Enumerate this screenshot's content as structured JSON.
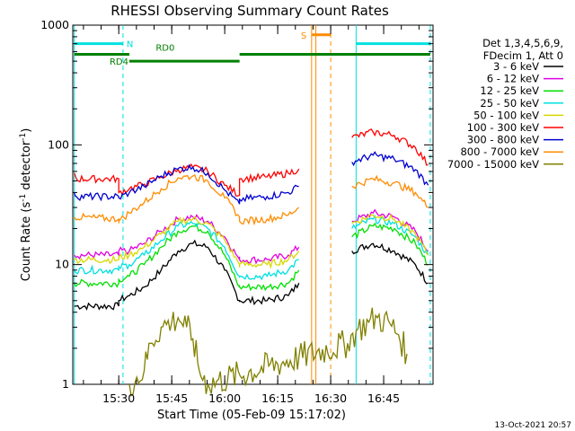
{
  "chart_data": {
    "type": "line",
    "title": "RHESSI Observing Summary Count Rates",
    "xlabel": "Start Time (05-Feb-09 15:17:02)",
    "ylabel_main": "Count Rate (s",
    "ylabel_sup1": "-1",
    "ylabel_mid": " detector",
    "ylabel_sup2": "-1",
    "ylabel_end": ")",
    "yscale": "log",
    "ylim": [
      1,
      1000
    ],
    "xlim_minutes": [
      15.283,
      16.983
    ],
    "y_ticks": [
      {
        "value": 1,
        "label": "1"
      },
      {
        "value": 10,
        "label": "10"
      },
      {
        "value": 100,
        "label": "100"
      },
      {
        "value": 1000,
        "label": "1000"
      }
    ],
    "x_ticks": [
      {
        "value": 15.5,
        "label": "15:30"
      },
      {
        "value": 15.75,
        "label": "15:45"
      },
      {
        "value": 16.0,
        "label": "16:00"
      },
      {
        "value": 16.25,
        "label": "16:15"
      },
      {
        "value": 16.5,
        "label": "16:30"
      },
      {
        "value": 16.75,
        "label": "16:45"
      }
    ],
    "legend_header": [
      "Det 1,3,4,5,6,9,",
      "FDecim 1, Att 0"
    ],
    "legend_position": "right",
    "footer_date": "13-Oct-2021 20:57",
    "series": [
      {
        "name": "3 - 6 keV",
        "color": "#000000",
        "x": [
          15.29,
          15.5,
          15.5,
          15.55,
          15.62,
          15.7,
          15.78,
          15.85,
          15.92,
          16.0,
          16.07,
          16.07,
          16.2,
          16.3,
          16.35,
          16.48,
          16.6,
          16.7,
          16.8,
          16.9,
          16.96
        ],
        "y": [
          4.5,
          4.5,
          5.0,
          5.5,
          6.5,
          9,
          13,
          15,
          14,
          9,
          5,
          5,
          5,
          5.5,
          7,
          null,
          13,
          15,
          13,
          10,
          7
        ]
      },
      {
        "name": "6 - 12 keV",
        "color": "#e000e0",
        "x": [
          15.29,
          15.5,
          15.5,
          15.55,
          15.62,
          15.7,
          15.78,
          15.85,
          15.92,
          16.0,
          16.07,
          16.07,
          16.2,
          16.3,
          16.35,
          16.48,
          16.6,
          16.7,
          16.8,
          16.9,
          16.96
        ],
        "y": [
          12,
          12,
          13,
          13,
          15,
          19,
          24,
          25,
          23,
          17,
          11,
          11,
          11,
          12,
          14,
          null,
          23,
          27,
          25,
          19,
          13
        ]
      },
      {
        "name": "12 - 25 keV",
        "color": "#00e000",
        "x": [
          15.29,
          15.5,
          15.5,
          15.55,
          15.62,
          15.7,
          15.78,
          15.85,
          15.92,
          16.0,
          16.07,
          16.07,
          16.2,
          16.3,
          16.35,
          16.48,
          16.6,
          16.7,
          16.8,
          16.9,
          16.96
        ],
        "y": [
          7,
          7,
          7.5,
          8,
          10,
          14,
          19,
          21,
          19,
          12,
          6.5,
          6.5,
          6.5,
          7,
          9,
          null,
          17,
          21,
          20,
          15,
          10
        ]
      },
      {
        "name": "25 - 50 keV",
        "color": "#00e0e0",
        "x": [
          15.29,
          15.5,
          15.5,
          15.55,
          15.62,
          15.7,
          15.78,
          15.85,
          15.92,
          16.0,
          16.07,
          16.07,
          16.2,
          16.3,
          16.35,
          16.48,
          16.6,
          16.7,
          16.8,
          16.9,
          16.96
        ],
        "y": [
          9,
          9,
          9.5,
          10,
          12,
          16,
          21,
          22,
          20,
          14,
          8,
          8,
          8,
          9,
          11,
          null,
          20,
          24,
          22,
          17,
          12
        ]
      },
      {
        "name": "50 - 100 keV",
        "color": "#d8d800",
        "x": [
          15.29,
          15.5,
          15.5,
          15.55,
          15.62,
          15.7,
          15.78,
          15.85,
          15.92,
          16.0,
          16.07,
          16.07,
          16.2,
          16.3,
          16.35,
          16.48,
          16.6,
          16.7,
          16.8,
          16.9,
          16.96
        ],
        "y": [
          11,
          11,
          11.5,
          12,
          14,
          18,
          23,
          24,
          22,
          16,
          10,
          10,
          10,
          11,
          13,
          null,
          22,
          26,
          24,
          18,
          12
        ]
      },
      {
        "name": "100 - 300 keV",
        "color": "#ff0000",
        "x": [
          15.29,
          15.3,
          15.5,
          15.5,
          15.55,
          15.62,
          15.7,
          15.78,
          15.85,
          15.92,
          16.0,
          16.07,
          16.07,
          16.2,
          16.3,
          16.35,
          16.48,
          16.6,
          16.7,
          16.8,
          16.9,
          16.96
        ],
        "y": [
          58,
          52,
          52,
          40,
          43,
          47,
          54,
          62,
          65,
          60,
          46,
          38,
          52,
          54,
          58,
          63,
          null,
          115,
          128,
          120,
          95,
          68
        ]
      },
      {
        "name": "300 - 800 keV",
        "color": "#0000d0",
        "x": [
          15.29,
          15.3,
          15.5,
          15.5,
          15.55,
          15.62,
          15.7,
          15.78,
          15.85,
          15.92,
          16.0,
          16.07,
          16.07,
          16.2,
          16.3,
          16.35,
          16.48,
          16.6,
          16.7,
          16.8,
          16.9,
          16.96
        ],
        "y": [
          40,
          37,
          37,
          36,
          40,
          45,
          55,
          63,
          65,
          58,
          42,
          32,
          35,
          37,
          40,
          45,
          null,
          72,
          82,
          76,
          62,
          46
        ]
      },
      {
        "name": "800 - 7000 keV",
        "color": "#ff8c00",
        "x": [
          15.29,
          15.5,
          15.5,
          15.55,
          15.62,
          15.7,
          15.78,
          15.85,
          15.92,
          16.0,
          16.07,
          16.07,
          16.2,
          16.3,
          16.35,
          16.48,
          16.6,
          16.7,
          16.8,
          16.9,
          16.96
        ],
        "y": [
          25,
          24,
          23,
          27,
          33,
          43,
          53,
          55,
          50,
          36,
          25,
          23,
          24,
          26,
          30,
          null,
          45,
          52,
          48,
          40,
          30
        ]
      },
      {
        "name": "7000 - 15000 keV",
        "color": "#808000",
        "x": [
          15.55,
          15.62,
          15.65,
          15.7,
          15.75,
          15.78,
          15.82,
          15.85,
          15.88,
          15.92,
          16.58,
          16.62,
          16.68,
          16.72,
          16.78,
          16.82,
          16.86
        ],
        "y": [
          1,
          1.3,
          2.2,
          3,
          3.3,
          3.6,
          3,
          2.4,
          1.3,
          1,
          2.2,
          2.8,
          3.3,
          3.6,
          3.2,
          2.6,
          1.8
        ]
      }
    ],
    "annotations": {
      "night": {
        "label": "N",
        "color": "#00e0e0",
        "y": 700,
        "intervals": [
          [
            15.29,
            15.52
          ],
          [
            16.62,
            16.97
          ]
        ],
        "edges": [
          [
            15.29,
            "solid"
          ],
          [
            15.52,
            "dashed"
          ],
          [
            16.62,
            "solid"
          ],
          [
            16.97,
            "dashed"
          ]
        ]
      },
      "saa": {
        "label": "S",
        "color": "#ff8c00",
        "y": 830,
        "interval": [
          16.41,
          16.5
        ],
        "edges": [
          [
            16.41,
            "solid"
          ],
          [
            16.43,
            "solid"
          ],
          [
            16.5,
            "dashed"
          ]
        ]
      },
      "rd0": {
        "label": "RD0",
        "color": "#008000",
        "y": 570,
        "interval": [
          15.29,
          15.55
        ]
      },
      "rd4": {
        "label": "RD4",
        "color": "#008000",
        "y": 500,
        "interval": [
          15.55,
          16.07
        ]
      },
      "rd_right": {
        "color": "#008000",
        "y": 570,
        "interval": [
          16.07,
          16.97
        ]
      }
    }
  }
}
